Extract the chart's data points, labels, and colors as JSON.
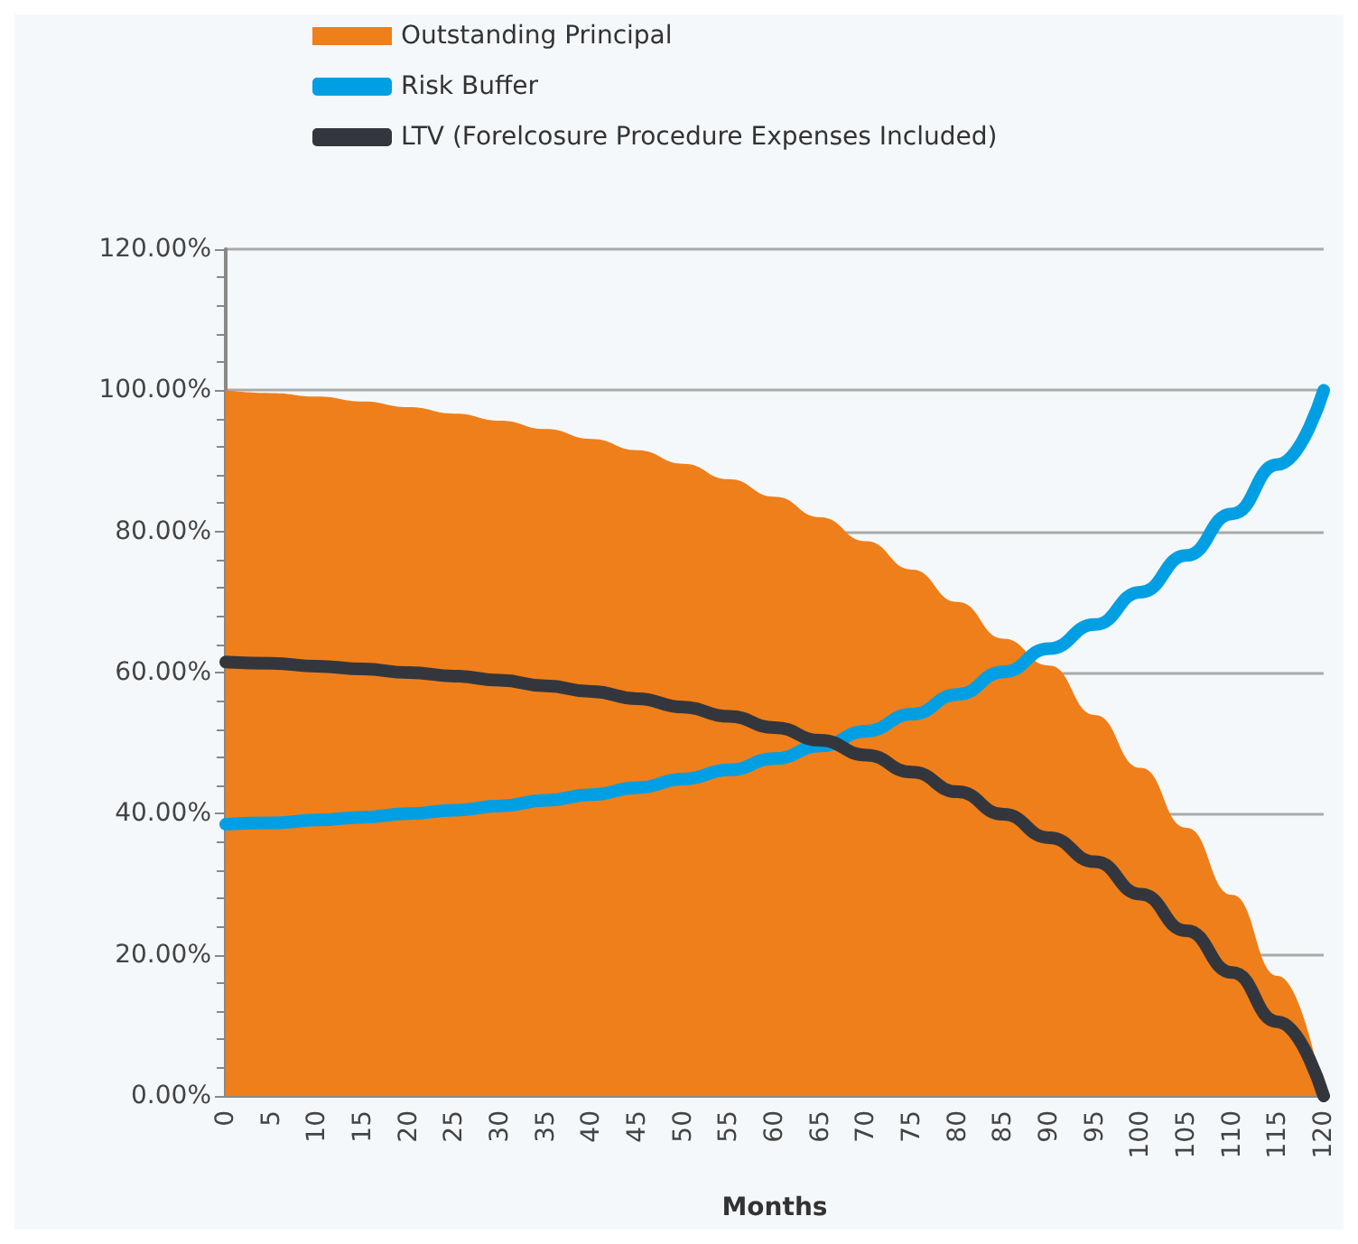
{
  "chart_data": {
    "type": "area",
    "xlabel": "Months",
    "categories": [
      "0",
      "5",
      "10",
      "15",
      "20",
      "25",
      "30",
      "35",
      "40",
      "45",
      "50",
      "55",
      "60",
      "65",
      "70",
      "75",
      "80",
      "85",
      "90",
      "95",
      "100",
      "105",
      "110",
      "115",
      "120"
    ],
    "series": [
      {
        "name": "Outstanding Principal",
        "color": "#ef7f1a",
        "values": [
          100,
          99.6,
          99.1,
          98.4,
          97.6,
          96.7,
          95.7,
          94.5,
          93.1,
          91.5,
          89.6,
          87.4,
          84.9,
          82.0,
          78.6,
          74.6,
          70.0,
          64.8,
          61.0,
          54.0,
          46.5,
          38.0,
          28.5,
          17.0,
          0
        ]
      },
      {
        "name": "Risk Buffer",
        "type": "line",
        "color": "#009fe3",
        "values": [
          38.5,
          38.7,
          39.1,
          39.5,
          40.0,
          40.5,
          41.1,
          41.9,
          42.7,
          43.7,
          44.9,
          46.2,
          47.8,
          49.6,
          51.7,
          54.1,
          56.9,
          60.1,
          63.4,
          66.8,
          71.4,
          76.6,
          82.5,
          89.5,
          100
        ]
      },
      {
        "name": "LTV (Forelcosure Procedure Expenses Included)",
        "type": "line",
        "color": "#33373d",
        "values": [
          61.5,
          61.3,
          60.9,
          60.5,
          60.0,
          59.5,
          58.9,
          58.1,
          57.3,
          56.3,
          55.1,
          53.8,
          52.2,
          50.4,
          48.3,
          45.9,
          43.1,
          39.9,
          36.6,
          33.2,
          28.6,
          23.4,
          17.5,
          10.5,
          0
        ]
      }
    ],
    "ylim": [
      0,
      120
    ],
    "yticks": [
      {
        "value": 0,
        "label": "0.00%"
      },
      {
        "value": 20,
        "label": "20.00%"
      },
      {
        "value": 40,
        "label": "40.00%"
      },
      {
        "value": 60,
        "label": "60.00%"
      },
      {
        "value": 80,
        "label": "80.00%"
      },
      {
        "value": 100,
        "label": "100.00%"
      },
      {
        "value": 120,
        "label": "120.00%"
      }
    ],
    "grid": "y",
    "legend": "top left",
    "marker": "none",
    "line_style": "solid"
  }
}
